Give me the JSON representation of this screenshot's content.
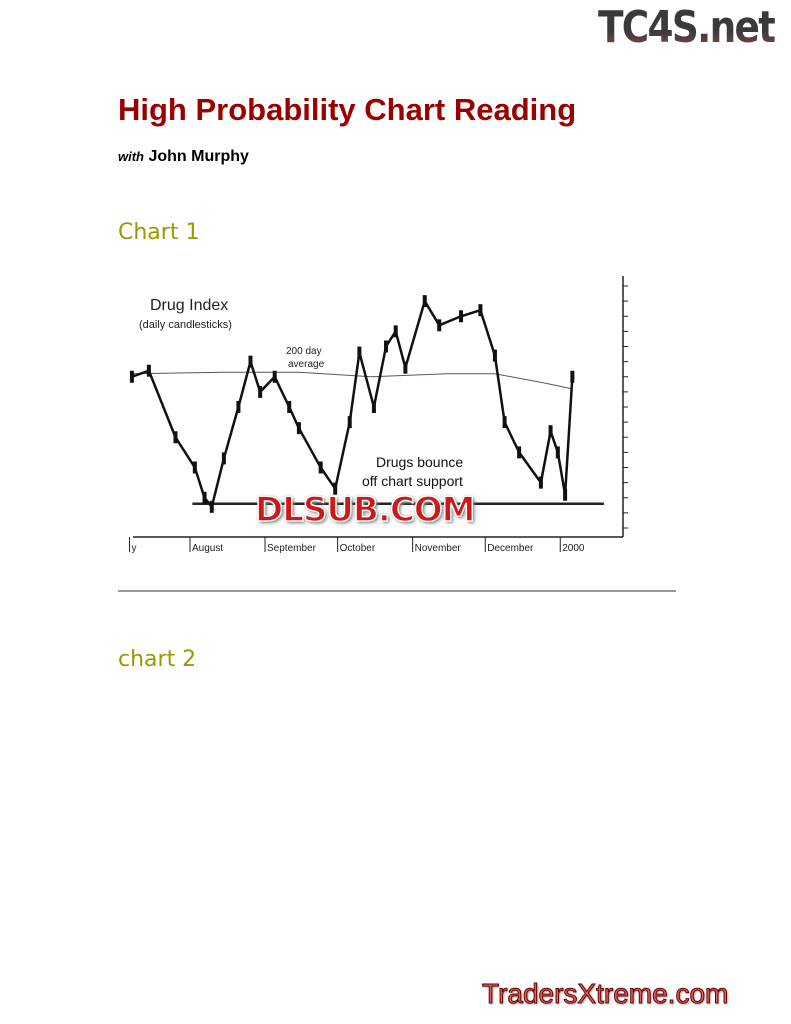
{
  "logos": {
    "top": "TC4S.net",
    "watermark": "DLSUB.COM",
    "bottom": "TradersXtreme.com"
  },
  "header": {
    "title": "High Probability Chart Reading",
    "with": "with",
    "author": "John Murphy"
  },
  "sections": [
    {
      "heading": "Chart 1"
    },
    {
      "heading": "chart 2"
    }
  ],
  "colors": {
    "title": "#990000",
    "section_heading": "#999900",
    "support_line": "#2a8a2a"
  },
  "chart_data": {
    "type": "candlestick",
    "title": "Drug Index",
    "subtitle": "(daily candlesticks)",
    "annotations": [
      "200 day",
      "average",
      "Drugs bounce",
      "off chart support"
    ],
    "x_tick_labels": [
      {
        "label": "y",
        "date": "1999-07-07"
      },
      {
        "label": "August",
        "date": "1999-08-01"
      },
      {
        "label": "September",
        "date": "1999-09-01"
      },
      {
        "label": "October",
        "date": "1999-10-01"
      },
      {
        "label": "November",
        "date": "1999-11-01"
      },
      {
        "label": "December",
        "date": "1999-12-01"
      },
      {
        "label": "2000",
        "date": "2000-01-01"
      }
    ],
    "xlim": [
      "1999-07-06",
      "2000-01-20"
    ],
    "ylim": [
      322,
      407
    ],
    "y_ticks": [
      405,
      400,
      395,
      390,
      385,
      380,
      375,
      370,
      365,
      360,
      355,
      350,
      345,
      340,
      335,
      330,
      325
    ],
    "y_axis_side": "right",
    "price": [
      [
        "1999-07-08",
        375
      ],
      [
        "1999-07-15",
        377
      ],
      [
        "1999-07-26",
        355
      ],
      [
        "1999-08-03",
        345
      ],
      [
        "1999-08-07",
        335
      ],
      [
        "1999-08-10",
        332
      ],
      [
        "1999-08-15",
        348
      ],
      [
        "1999-08-21",
        365
      ],
      [
        "1999-08-26",
        380
      ],
      [
        "1999-08-30",
        370
      ],
      [
        "1999-09-05",
        375
      ],
      [
        "1999-09-11",
        365
      ],
      [
        "1999-09-15",
        358
      ],
      [
        "1999-09-24",
        345
      ],
      [
        "1999-09-30",
        338
      ],
      [
        "1999-10-06",
        360
      ],
      [
        "1999-10-10",
        383
      ],
      [
        "1999-10-16",
        365
      ],
      [
        "1999-10-21",
        385
      ],
      [
        "1999-10-25",
        390
      ],
      [
        "1999-10-29",
        378
      ],
      [
        "1999-11-06",
        400
      ],
      [
        "1999-11-12",
        392
      ],
      [
        "1999-11-21",
        395
      ],
      [
        "1999-11-29",
        397
      ],
      [
        "1999-12-05",
        382
      ],
      [
        "1999-12-09",
        360
      ],
      [
        "1999-12-15",
        350
      ],
      [
        "1999-12-24",
        340
      ],
      [
        "1999-12-28",
        357
      ],
      [
        "1999-12-31",
        350
      ],
      [
        "2000-01-03",
        336
      ],
      [
        "2000-01-06",
        375
      ]
    ],
    "moving_average_200": [
      [
        "1999-07-08",
        376
      ],
      [
        "1999-08-15",
        376.5
      ],
      [
        "1999-09-15",
        376.5
      ],
      [
        "1999-10-15",
        375
      ],
      [
        "1999-11-15",
        376
      ],
      [
        "1999-12-05",
        376
      ],
      [
        "1999-12-25",
        373
      ],
      [
        "2000-01-06",
        371
      ]
    ],
    "support_level": 333,
    "support_range": [
      "1999-08-02",
      "2000-01-19"
    ]
  }
}
